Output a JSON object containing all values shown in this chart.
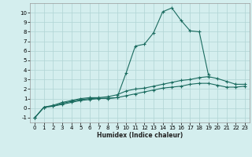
{
  "x": [
    0,
    1,
    2,
    3,
    4,
    5,
    6,
    7,
    8,
    9,
    10,
    11,
    12,
    13,
    14,
    15,
    16,
    17,
    18,
    19,
    20,
    21,
    22,
    23
  ],
  "line1": [
    -1.0,
    0.1,
    0.2,
    0.5,
    0.7,
    0.9,
    1.0,
    1.05,
    1.0,
    1.1,
    3.7,
    6.5,
    6.7,
    7.9,
    10.1,
    10.5,
    9.2,
    8.1,
    8.0,
    3.5,
    null,
    null,
    null,
    null
  ],
  "line2": [
    -1.0,
    0.1,
    0.3,
    0.6,
    0.8,
    1.0,
    1.1,
    1.1,
    1.2,
    1.4,
    1.8,
    2.0,
    2.1,
    2.3,
    2.5,
    2.7,
    2.9,
    3.0,
    3.2,
    3.3,
    3.1,
    2.8,
    2.5,
    2.5
  ],
  "line3": [
    -1.0,
    0.1,
    0.2,
    0.4,
    0.6,
    0.8,
    0.9,
    1.0,
    1.05,
    1.1,
    1.3,
    1.5,
    1.7,
    1.9,
    2.1,
    2.2,
    2.3,
    2.5,
    2.6,
    2.6,
    2.4,
    2.2,
    2.2,
    2.3
  ],
  "color": "#1a6b5f",
  "bg_color": "#d4eeee",
  "grid_color": "#b0d4d4",
  "xlim": [
    -0.5,
    23.5
  ],
  "ylim": [
    -1.5,
    11.0
  ],
  "xlabel": "Humidex (Indice chaleur)",
  "yticks": [
    -1,
    0,
    1,
    2,
    3,
    4,
    5,
    6,
    7,
    8,
    9,
    10
  ],
  "xticks": [
    0,
    1,
    2,
    3,
    4,
    5,
    6,
    7,
    8,
    9,
    10,
    11,
    12,
    13,
    14,
    15,
    16,
    17,
    18,
    19,
    20,
    21,
    22,
    23
  ]
}
